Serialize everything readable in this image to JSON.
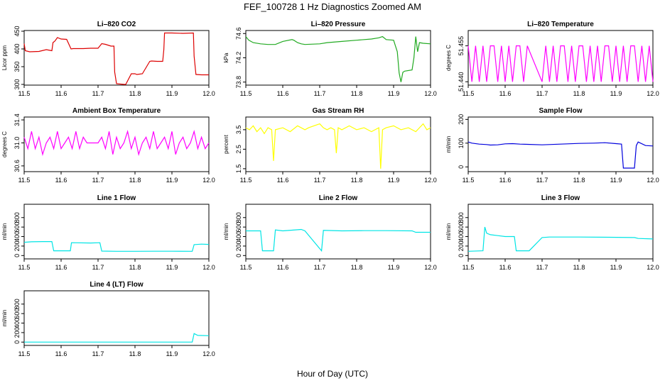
{
  "figure": {
    "title": "FEF_100728  1 Hz Diagnostics Zoomed AM",
    "xlabel": "Hour of Day (UTC)"
  },
  "chart_data": [
    {
      "type": "line",
      "title": "Li–820 CO2",
      "ylabel": "Licor ppm",
      "color": "#dd0000",
      "xlim": [
        11.5,
        12.0
      ],
      "ylim": [
        298,
        452
      ],
      "xticks": [
        "11.5",
        "11.6",
        "11.7",
        "11.8",
        "11.9",
        "12.0"
      ],
      "yticks": [
        {
          "v": 300,
          "t": "300"
        },
        {
          "v": 350,
          "t": "350"
        },
        {
          "v": 400,
          "t": "400"
        },
        {
          "v": 450,
          "t": "450"
        }
      ],
      "x": [
        11.5,
        11.503,
        11.515,
        11.54,
        11.56,
        11.575,
        11.578,
        11.583,
        11.59,
        11.6,
        11.615,
        11.627,
        11.633,
        11.66,
        11.68,
        11.7,
        11.71,
        11.72,
        11.735,
        11.743,
        11.745,
        11.75,
        11.77,
        11.775,
        11.79,
        11.8,
        11.805,
        11.82,
        11.84,
        11.845,
        11.86,
        11.875,
        11.878,
        11.88,
        11.9,
        11.93,
        11.958,
        11.96,
        11.965,
        11.98,
        12.0
      ],
      "values": [
        415,
        395,
        392,
        393,
        398,
        395,
        418,
        422,
        432,
        428,
        427,
        400,
        401,
        401,
        402,
        402,
        415,
        413,
        408,
        408,
        335,
        302,
        300,
        300,
        330,
        330,
        328,
        330,
        365,
        366,
        365,
        365,
        398,
        445,
        445,
        444,
        445,
        380,
        328,
        327,
        327
      ]
    },
    {
      "type": "line",
      "title": "Li–820 Pressure",
      "ylabel": "kPa",
      "color": "#22aa22",
      "xlim": [
        11.5,
        12.0
      ],
      "ylim": [
        73.75,
        74.65
      ],
      "xticks": [
        "11.5",
        "11.6",
        "11.7",
        "11.8",
        "11.9",
        "12.0"
      ],
      "yticks": [
        {
          "v": 73.8,
          "t": "73.8"
        },
        {
          "v": 74.2,
          "t": "74.2"
        },
        {
          "v": 74.6,
          "t": "74.6"
        }
      ],
      "x": [
        11.5,
        11.508,
        11.52,
        11.54,
        11.56,
        11.58,
        11.6,
        11.625,
        11.63,
        11.64,
        11.65,
        11.66,
        11.7,
        11.72,
        11.76,
        11.8,
        11.84,
        11.86,
        11.87,
        11.88,
        11.9,
        11.91,
        11.915,
        11.92,
        11.925,
        11.93,
        11.95,
        11.955,
        11.96,
        11.965,
        11.97,
        11.98,
        12.0
      ],
      "values": [
        74.55,
        74.49,
        74.45,
        74.43,
        74.42,
        74.42,
        74.47,
        74.5,
        74.49,
        74.45,
        74.43,
        74.42,
        74.43,
        74.45,
        74.47,
        74.49,
        74.51,
        74.53,
        74.55,
        74.5,
        74.49,
        74.3,
        73.95,
        73.8,
        73.96,
        73.98,
        74.0,
        74.2,
        74.55,
        74.3,
        74.45,
        74.44,
        74.43
      ]
    },
    {
      "type": "line",
      "title": "Li–820 Temperature",
      "ylabel": "degrees C",
      "color": "#ff00ff",
      "xlim": [
        11.5,
        12.0
      ],
      "ylim": [
        51.4386,
        51.4614
      ],
      "xticks": [
        "11.5",
        "11.6",
        "11.7",
        "11.8",
        "11.9",
        "12.0"
      ],
      "yticks": [
        {
          "v": 51.44,
          "t": "51.440"
        },
        {
          "v": 51.455,
          "t": "51.455"
        }
      ],
      "x": [
        11.5,
        11.51,
        11.52,
        11.53,
        11.54,
        11.55,
        11.56,
        11.57,
        11.58,
        11.59,
        11.6,
        11.61,
        11.62,
        11.63,
        11.64,
        11.65,
        11.66,
        11.7,
        11.71,
        11.72,
        11.73,
        11.74,
        11.75,
        11.76,
        11.77,
        11.78,
        11.79,
        11.8,
        11.81,
        11.82,
        11.83,
        11.84,
        11.85,
        11.86,
        11.87,
        11.88,
        11.89,
        11.9,
        11.91,
        11.92,
        11.93,
        11.94,
        11.95,
        11.96,
        11.97,
        11.98,
        11.99,
        12.0
      ],
      "values": [
        51.455,
        51.44,
        51.455,
        51.44,
        51.455,
        51.44,
        51.455,
        51.455,
        51.44,
        51.455,
        51.44,
        51.455,
        51.44,
        51.455,
        51.455,
        51.44,
        51.455,
        51.44,
        51.455,
        51.44,
        51.455,
        51.44,
        51.455,
        51.455,
        51.44,
        51.455,
        51.44,
        51.455,
        51.455,
        51.44,
        51.455,
        51.44,
        51.455,
        51.44,
        51.455,
        51.455,
        51.44,
        51.455,
        51.44,
        51.455,
        51.44,
        51.455,
        51.455,
        51.44,
        51.455,
        51.44,
        51.455,
        51.44
      ]
    },
    {
      "type": "line",
      "title": "Ambient Box Temperature",
      "ylabel": "degrees C",
      "color": "#ff00ff",
      "xlim": [
        11.5,
        12.0
      ],
      "ylim": [
        30.5,
        31.45
      ],
      "xticks": [
        "11.5",
        "11.6",
        "11.7",
        "11.8",
        "11.9",
        "12.0"
      ],
      "yticks": [
        {
          "v": 30.6,
          "t": "30.6"
        },
        {
          "v": 31.0,
          "t": "31.0"
        },
        {
          "v": 31.4,
          "t": "31.4"
        }
      ],
      "x": [
        11.5,
        11.51,
        11.52,
        11.53,
        11.54,
        11.55,
        11.56,
        11.57,
        11.58,
        11.59,
        11.6,
        11.61,
        11.62,
        11.63,
        11.64,
        11.65,
        11.66,
        11.67,
        11.7,
        11.71,
        11.72,
        11.73,
        11.74,
        11.75,
        11.76,
        11.77,
        11.78,
        11.79,
        11.8,
        11.81,
        11.82,
        11.83,
        11.84,
        11.85,
        11.86,
        11.87,
        11.88,
        11.89,
        11.9,
        11.91,
        11.92,
        11.93,
        11.94,
        11.95,
        11.96,
        11.97,
        11.98,
        11.99,
        12.0
      ],
      "values": [
        31.1,
        30.9,
        31.2,
        30.9,
        31.1,
        30.8,
        31.0,
        31.1,
        30.9,
        31.2,
        30.9,
        31.0,
        31.1,
        30.9,
        31.2,
        30.9,
        31.1,
        31.0,
        31.0,
        31.1,
        30.9,
        31.2,
        30.8,
        31.1,
        30.9,
        31.0,
        31.2,
        30.9,
        31.1,
        30.8,
        31.0,
        31.1,
        30.9,
        31.2,
        30.9,
        31.0,
        31.1,
        30.9,
        31.2,
        30.8,
        31.0,
        31.1,
        30.9,
        31.0,
        31.2,
        30.9,
        31.1,
        30.9,
        31.0
      ]
    },
    {
      "type": "line",
      "title": "Gas Stream RH",
      "ylabel": "percent",
      "color": "#ffff00",
      "xlim": [
        11.5,
        12.0
      ],
      "ylim": [
        1.35,
        4.15
      ],
      "xticks": [
        "11.5",
        "11.6",
        "11.7",
        "11.8",
        "11.9",
        "12.0"
      ],
      "yticks": [
        {
          "v": 1.5,
          "t": "1.5"
        },
        {
          "v": 2.5,
          "t": "2.5"
        },
        {
          "v": 3.5,
          "t": "3.5"
        }
      ],
      "x": [
        11.5,
        11.51,
        11.52,
        11.53,
        11.54,
        11.55,
        11.56,
        11.57,
        11.575,
        11.58,
        11.6,
        11.62,
        11.64,
        11.66,
        11.67,
        11.7,
        11.71,
        11.72,
        11.73,
        11.74,
        11.745,
        11.75,
        11.76,
        11.78,
        11.8,
        11.82,
        11.84,
        11.86,
        11.865,
        11.87,
        11.88,
        11.9,
        11.92,
        11.94,
        11.96,
        11.97,
        11.98,
        11.99,
        12.0
      ],
      "values": [
        3.6,
        3.5,
        3.7,
        3.4,
        3.6,
        3.3,
        3.6,
        3.5,
        1.9,
        3.5,
        3.6,
        3.4,
        3.7,
        3.5,
        3.6,
        3.8,
        3.6,
        3.5,
        3.6,
        3.5,
        2.3,
        3.6,
        3.5,
        3.7,
        3.5,
        3.6,
        3.4,
        3.6,
        1.5,
        3.5,
        3.6,
        3.7,
        3.5,
        3.6,
        3.4,
        3.6,
        3.8,
        3.5,
        3.6
      ]
    },
    {
      "type": "line",
      "title": "Sample Flow",
      "ylabel": "ml/min",
      "color": "#0000dd",
      "xlim": [
        11.5,
        12.0
      ],
      "ylim": [
        -20,
        210
      ],
      "xticks": [
        "11.5",
        "11.6",
        "11.7",
        "11.8",
        "11.9",
        "12.0"
      ],
      "yticks": [
        {
          "v": 0,
          "t": "0"
        },
        {
          "v": 100,
          "t": "100"
        },
        {
          "v": 200,
          "t": "200"
        }
      ],
      "x": [
        11.5,
        11.51,
        11.53,
        11.55,
        11.56,
        11.58,
        11.6,
        11.62,
        11.64,
        11.66,
        11.7,
        11.75,
        11.8,
        11.84,
        11.87,
        11.9,
        11.915,
        11.92,
        11.95,
        11.955,
        11.96,
        11.98,
        12.0
      ],
      "values": [
        105,
        100,
        96,
        94,
        92,
        93,
        97,
        98,
        96,
        95,
        93,
        96,
        99,
        100,
        102,
        98,
        96,
        -5,
        -5,
        90,
        105,
        90,
        88
      ]
    },
    {
      "type": "line",
      "title": "Line 1 Flow",
      "ylabel": "ml/min",
      "color": "#00e5e5",
      "xlim": [
        11.5,
        12.0
      ],
      "ylim": [
        -70,
        1080
      ],
      "xticks": [
        "11.5",
        "11.6",
        "11.7",
        "11.8",
        "11.9",
        "12.0"
      ],
      "yticks": [
        {
          "v": 0,
          "t": "0"
        },
        {
          "v": 200,
          "t": "200"
        },
        {
          "v": 400,
          "t": "400"
        },
        {
          "v": 600,
          "t": "600"
        },
        {
          "v": 800,
          "t": "800"
        }
      ],
      "x": [
        11.5,
        11.52,
        11.55,
        11.575,
        11.58,
        11.6,
        11.625,
        11.628,
        11.68,
        11.705,
        11.71,
        11.75,
        11.8,
        11.85,
        11.9,
        11.955,
        11.96,
        11.98,
        12.0
      ],
      "values": [
        280,
        290,
        295,
        295,
        100,
        100,
        100,
        270,
        265,
        270,
        95,
        90,
        90,
        92,
        92,
        90,
        230,
        240,
        235
      ]
    },
    {
      "type": "line",
      "title": "Line 2 Flow",
      "ylabel": "ml/min",
      "color": "#00e5e5",
      "xlim": [
        11.5,
        12.0
      ],
      "ylim": [
        -70,
        1080
      ],
      "xticks": [
        "11.5",
        "11.6",
        "11.7",
        "11.8",
        "11.9",
        "12.0"
      ],
      "yticks": [
        {
          "v": 0,
          "t": "0"
        },
        {
          "v": 200,
          "t": "200"
        },
        {
          "v": 400,
          "t": "400"
        },
        {
          "v": 600,
          "t": "600"
        },
        {
          "v": 800,
          "t": "800"
        }
      ],
      "x": [
        11.5,
        11.54,
        11.545,
        11.575,
        11.58,
        11.6,
        11.65,
        11.66,
        11.705,
        11.71,
        11.76,
        11.82,
        11.88,
        11.95,
        11.96,
        12.0
      ],
      "values": [
        520,
        520,
        100,
        100,
        540,
        520,
        550,
        520,
        100,
        530,
        520,
        525,
        525,
        520,
        490,
        490
      ]
    },
    {
      "type": "line",
      "title": "Line 3 Flow",
      "ylabel": "ml/min",
      "color": "#00e5e5",
      "xlim": [
        11.5,
        12.0
      ],
      "ylim": [
        -70,
        1080
      ],
      "xticks": [
        "11.5",
        "11.6",
        "11.7",
        "11.8",
        "11.9",
        "12.0"
      ],
      "yticks": [
        {
          "v": 0,
          "t": "0"
        },
        {
          "v": 200,
          "t": "200"
        },
        {
          "v": 400,
          "t": "400"
        },
        {
          "v": 600,
          "t": "600"
        },
        {
          "v": 800,
          "t": "800"
        }
      ],
      "x": [
        11.5,
        11.54,
        11.545,
        11.55,
        11.56,
        11.58,
        11.6,
        11.625,
        11.63,
        11.665,
        11.7,
        11.72,
        11.8,
        11.88,
        11.95,
        11.96,
        12.0
      ],
      "values": [
        90,
        100,
        600,
        470,
        440,
        420,
        400,
        400,
        100,
        100,
        380,
        390,
        390,
        385,
        380,
        360,
        350
      ]
    },
    {
      "type": "line",
      "title": "Line 4 (LT) Flow",
      "ylabel": "ml/min",
      "color": "#00e5e5",
      "xlim": [
        11.5,
        12.0
      ],
      "ylim": [
        -70,
        1080
      ],
      "xticks": [
        "11.5",
        "11.6",
        "11.7",
        "11.8",
        "11.9",
        "12.0"
      ],
      "yticks": [
        {
          "v": 0,
          "t": "0"
        },
        {
          "v": 200,
          "t": "200"
        },
        {
          "v": 400,
          "t": "400"
        },
        {
          "v": 600,
          "t": "600"
        },
        {
          "v": 800,
          "t": "800"
        }
      ],
      "x": [
        11.5,
        11.6,
        11.7,
        11.8,
        11.9,
        11.955,
        11.96,
        11.97,
        12.0
      ],
      "values": [
        0,
        0,
        0,
        0,
        0,
        0,
        180,
        140,
        135
      ]
    }
  ]
}
